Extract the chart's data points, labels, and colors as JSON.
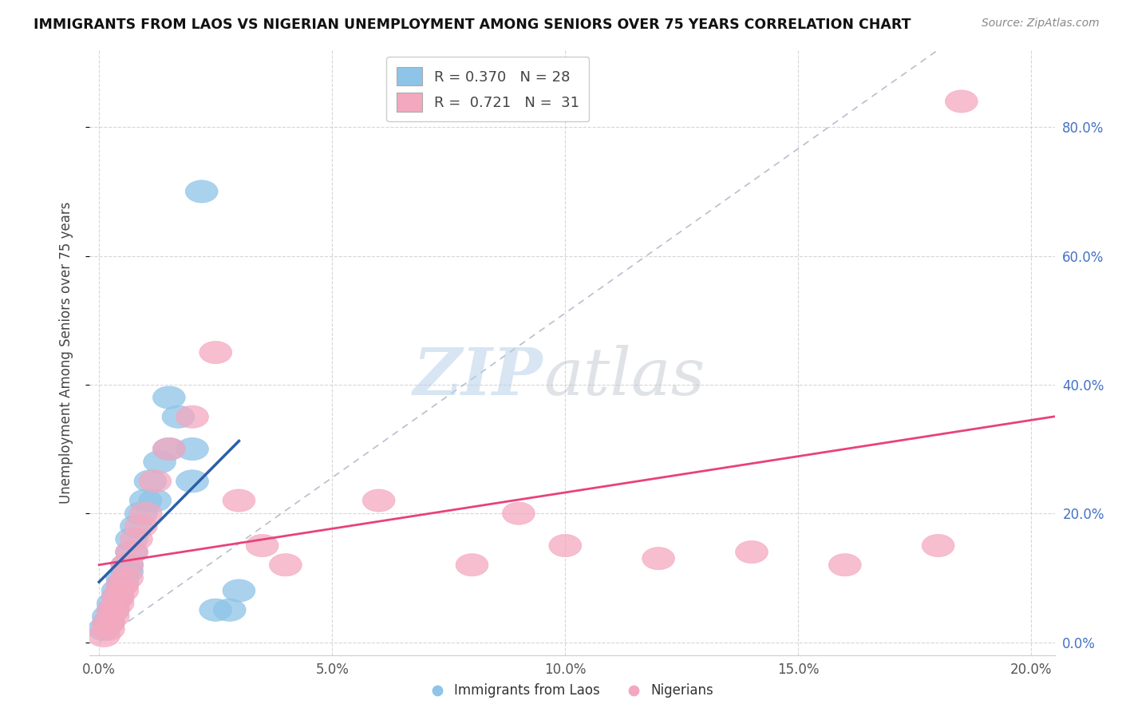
{
  "title": "IMMIGRANTS FROM LAOS VS NIGERIAN UNEMPLOYMENT AMONG SENIORS OVER 75 YEARS CORRELATION CHART",
  "source": "Source: ZipAtlas.com",
  "ylabel": "Unemployment Among Seniors over 75 years",
  "xlabel": "",
  "xlim": [
    -0.002,
    0.205
  ],
  "ylim": [
    -0.02,
    0.92
  ],
  "xticks": [
    0.0,
    0.05,
    0.1,
    0.15,
    0.2
  ],
  "yticks": [
    0.0,
    0.2,
    0.4,
    0.6,
    0.8
  ],
  "xticklabels": [
    "0.0%",
    "5.0%",
    "10.0%",
    "15.0%",
    "20.0%"
  ],
  "yticklabels": [
    "0.0%",
    "20.0%",
    "40.0%",
    "60.0%",
    "80.0%"
  ],
  "blue_color": "#8ec4e8",
  "pink_color": "#f4a8bf",
  "blue_line_color": "#2c5fa8",
  "pink_line_color": "#e8427a",
  "diag_color": "#b0b8c8",
  "legend_R_blue": "0.370",
  "legend_N_blue": "28",
  "legend_R_pink": "0.721",
  "legend_N_pink": "31",
  "blue_scatter_x": [
    0.001,
    0.002,
    0.002,
    0.003,
    0.003,
    0.004,
    0.004,
    0.005,
    0.005,
    0.006,
    0.006,
    0.007,
    0.007,
    0.008,
    0.009,
    0.01,
    0.011,
    0.012,
    0.013,
    0.015,
    0.017,
    0.02,
    0.022,
    0.025,
    0.028,
    0.03,
    0.015,
    0.02
  ],
  "blue_scatter_y": [
    0.02,
    0.03,
    0.04,
    0.05,
    0.06,
    0.07,
    0.08,
    0.09,
    0.1,
    0.11,
    0.12,
    0.14,
    0.16,
    0.18,
    0.2,
    0.22,
    0.25,
    0.22,
    0.28,
    0.3,
    0.35,
    0.3,
    0.7,
    0.05,
    0.05,
    0.08,
    0.38,
    0.25
  ],
  "pink_scatter_x": [
    0.001,
    0.002,
    0.002,
    0.003,
    0.003,
    0.004,
    0.004,
    0.005,
    0.005,
    0.006,
    0.006,
    0.007,
    0.008,
    0.009,
    0.01,
    0.012,
    0.015,
    0.02,
    0.025,
    0.03,
    0.035,
    0.04,
    0.06,
    0.08,
    0.09,
    0.1,
    0.12,
    0.14,
    0.16,
    0.18,
    0.185
  ],
  "pink_scatter_y": [
    0.01,
    0.02,
    0.03,
    0.04,
    0.05,
    0.06,
    0.07,
    0.08,
    0.09,
    0.1,
    0.12,
    0.14,
    0.16,
    0.18,
    0.2,
    0.25,
    0.3,
    0.35,
    0.45,
    0.22,
    0.15,
    0.12,
    0.22,
    0.12,
    0.2,
    0.15,
    0.13,
    0.14,
    0.12,
    0.15,
    0.84
  ]
}
